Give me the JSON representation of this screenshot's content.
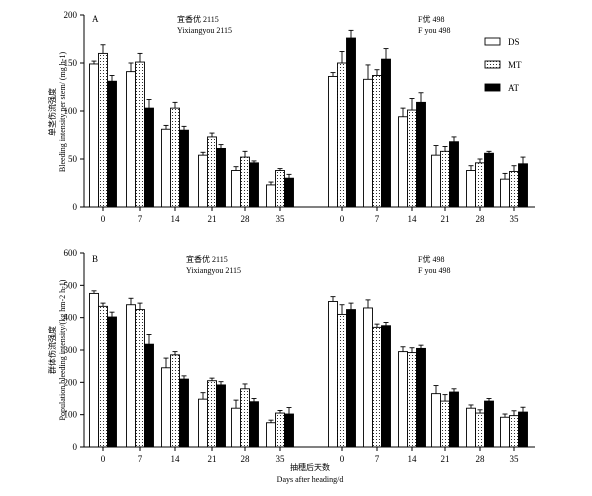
{
  "chart_data": [
    {
      "type": "bar",
      "panel_label": "A",
      "ylabel_cn": "单茎伤流强度",
      "ylabel_en": "Bleeding intensity per stem/ (mg h-1)",
      "ylabel_unit": "-1",
      "ylim": [
        0,
        200
      ],
      "yticks": [
        0,
        50,
        100,
        150,
        200
      ],
      "categories": [
        "0",
        "7",
        "14",
        "21",
        "28",
        "35"
      ],
      "legend": [
        "DS",
        "MT",
        "AT"
      ],
      "groups": [
        {
          "name_cn": "宜香优 2115",
          "name_en": "Yixiangyou 2115",
          "series": [
            {
              "name": "DS",
              "values": [
                149,
                141,
                81,
                54,
                38,
                23
              ],
              "errors": [
                3,
                9,
                4,
                3,
                4,
                3
              ]
            },
            {
              "name": "MT",
              "values": [
                160,
                151,
                103,
                73,
                52,
                38
              ],
              "errors": [
                9,
                9,
                6,
                4,
                6,
                2
              ]
            },
            {
              "name": "AT",
              "values": [
                131,
                103,
                80,
                61,
                46,
                30
              ],
              "errors": [
                6,
                9,
                4,
                4,
                2,
                4
              ]
            }
          ]
        },
        {
          "name_cn": "F优 498",
          "name_en": "F you 498",
          "series": [
            {
              "name": "DS",
              "values": [
                136,
                133,
                94,
                54,
                38,
                29
              ],
              "errors": [
                4,
                15,
                9,
                10,
                5,
                6
              ]
            },
            {
              "name": "MT",
              "values": [
                150,
                137,
                101,
                58,
                46,
                37
              ],
              "errors": [
                12,
                6,
                12,
                5,
                4,
                6
              ]
            },
            {
              "name": "AT",
              "values": [
                176,
                154,
                109,
                68,
                56,
                45
              ],
              "errors": [
                8,
                11,
                10,
                5,
                2,
                7
              ]
            }
          ]
        }
      ]
    },
    {
      "type": "bar",
      "panel_label": "B",
      "ylabel_cn": "群体伤流强度",
      "ylabel_en": "Population bleeding intensity/(kg hm-2 h-1)",
      "ylim": [
        0,
        600
      ],
      "yticks": [
        0,
        100,
        200,
        300,
        400,
        500,
        600
      ],
      "categories": [
        "0",
        "7",
        "14",
        "21",
        "28",
        "35"
      ],
      "groups": [
        {
          "name_cn": "宜香优 2115",
          "name_en": "Yixiangyou 2115",
          "series": [
            {
              "name": "DS",
              "values": [
                475,
                440,
                245,
                148,
                120,
                75
              ],
              "errors": [
                8,
                20,
                30,
                20,
                25,
                8
              ]
            },
            {
              "name": "MT",
              "values": [
                435,
                425,
                285,
                205,
                180,
                105
              ],
              "errors": [
                10,
                20,
                10,
                8,
                15,
                8
              ]
            },
            {
              "name": "AT",
              "values": [
                402,
                318,
                210,
                192,
                140,
                102
              ],
              "errors": [
                15,
                30,
                10,
                10,
                10,
                20
              ]
            }
          ]
        },
        {
          "name_cn": "F优 498",
          "name_en": "F you 498",
          "series": [
            {
              "name": "DS",
              "values": [
                450,
                430,
                295,
                165,
                120,
                92
              ],
              "errors": [
                15,
                25,
                15,
                25,
                10,
                10
              ]
            },
            {
              "name": "MT",
              "values": [
                410,
                370,
                292,
                142,
                105,
                97
              ],
              "errors": [
                30,
                10,
                15,
                20,
                10,
                15
              ]
            },
            {
              "name": "AT",
              "values": [
                425,
                375,
                305,
                170,
                142,
                108
              ],
              "errors": [
                20,
                10,
                10,
                10,
                8,
                15
              ]
            }
          ]
        }
      ]
    }
  ],
  "xlabel_cn": "抽穗后天数",
  "xlabel_en": "Days after heading/d",
  "colors": {
    "DS": "#ffffff",
    "MT": "#ffffff",
    "AT": "#000000",
    "axis": "#000000"
  }
}
